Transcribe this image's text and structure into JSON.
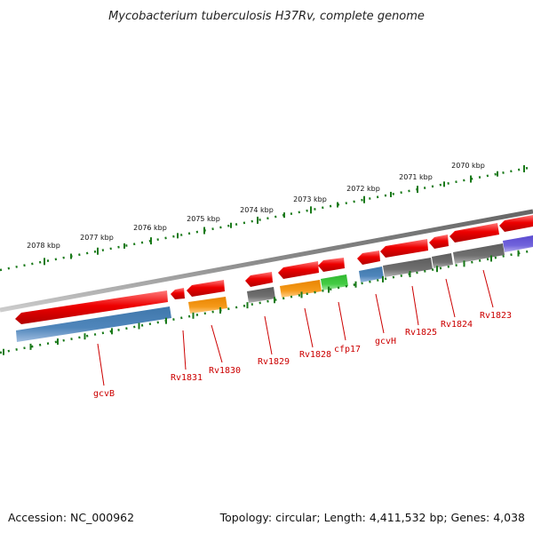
{
  "title": "Mycobacterium tuberculosis H37Rv, complete genome",
  "footer": {
    "accession": "Accession: NC_000962",
    "summary": "Topology: circular; Length: 4,411,532 bp; Genes: 4,038"
  },
  "ticks": [
    "2078 kbp",
    "2077 kbp",
    "2076 kbp",
    "2075 kbp",
    "2074 kbp",
    "2073 kbp",
    "2072 kbp",
    "2071 kbp",
    "2070 kbp"
  ],
  "gene_labels": [
    "gcvB",
    "Rv1831",
    "Rv1830",
    "Rv1829",
    "Rv1828",
    "cfp17",
    "gcvH",
    "Rv1825",
    "Rv1824",
    "Rv1823"
  ],
  "colors": {
    "cds": "#ee0000",
    "blue": "#4f86bb",
    "gray": "#6e6e6e",
    "orange": "#f59010",
    "green": "#3ec83e",
    "purple": "#7060d8",
    "tick": "#1a7a1a",
    "label": "#cc0000",
    "backbone": "#888888"
  }
}
